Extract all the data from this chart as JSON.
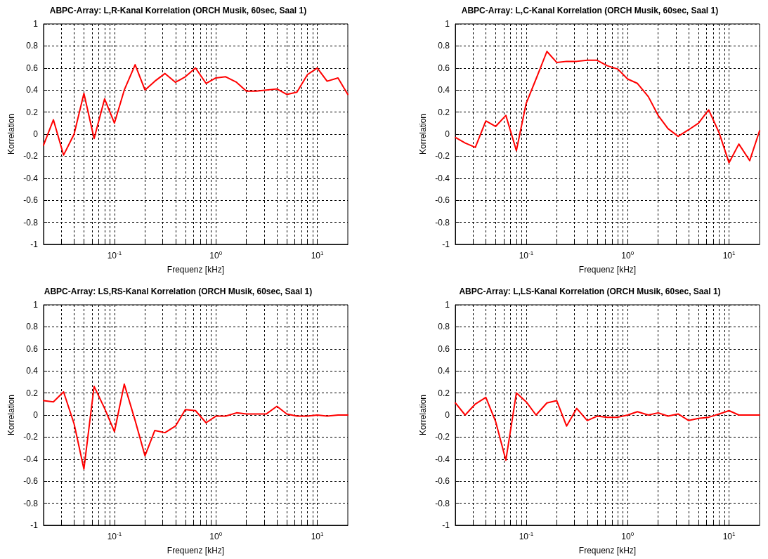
{
  "chart_data": [
    {
      "type": "line",
      "title": "ABPC-Array: L,R-Kanal Korrelation (ORCH Musik, 60sec, Saal 1)",
      "xlabel": "Frequenz [kHz]",
      "ylabel": "Korrelation",
      "log": "x",
      "grid": true,
      "marker": "none",
      "line_style": "solid",
      "xlim": [
        0.02,
        20
      ],
      "ylim": [
        -1,
        1
      ],
      "xticks": [
        {
          "value": 0.03,
          "label": null
        },
        {
          "value": 0.04,
          "label": null
        },
        {
          "value": 0.05,
          "label": null
        },
        {
          "value": 0.06,
          "label": null
        },
        {
          "value": 0.07,
          "label": null
        },
        {
          "value": 0.08,
          "label": null
        },
        {
          "value": 0.09,
          "label": null
        },
        {
          "value": 0.1,
          "label": "10$^{-1}$"
        },
        {
          "value": 0.2,
          "label": null
        },
        {
          "value": 0.3,
          "label": null
        },
        {
          "value": 0.4,
          "label": null
        },
        {
          "value": 0.5,
          "label": null
        },
        {
          "value": 0.6,
          "label": null
        },
        {
          "value": 0.7,
          "label": null
        },
        {
          "value": 0.8,
          "label": null
        },
        {
          "value": 0.9,
          "label": null
        },
        {
          "value": 1,
          "label": "10$^{0}$"
        },
        {
          "value": 2,
          "label": null
        },
        {
          "value": 3,
          "label": null
        },
        {
          "value": 4,
          "label": null
        },
        {
          "value": 5,
          "label": null
        },
        {
          "value": 6,
          "label": null
        },
        {
          "value": 7,
          "label": null
        },
        {
          "value": 8,
          "label": null
        },
        {
          "value": 9,
          "label": null
        },
        {
          "value": 10,
          "label": "10$^{1}$"
        }
      ],
      "yticks": [
        -1,
        -0.8,
        -0.6,
        -0.4,
        -0.2,
        0,
        0.2,
        0.4,
        0.6,
        0.8,
        1
      ],
      "x": [
        0.02,
        0.025,
        0.0315,
        0.04,
        0.05,
        0.063,
        0.08,
        0.1,
        0.125,
        0.16,
        0.2,
        0.25,
        0.315,
        0.4,
        0.5,
        0.63,
        0.8,
        1,
        1.25,
        1.6,
        2,
        2.5,
        3.15,
        4,
        5,
        6.3,
        8,
        10,
        12.5,
        16,
        20
      ],
      "series": [
        {
          "color": "#ff0000",
          "values": [
            -0.1,
            0.13,
            -0.19,
            0.0,
            0.37,
            -0.04,
            0.32,
            0.1,
            0.4,
            0.63,
            0.4,
            0.48,
            0.55,
            0.47,
            0.52,
            0.6,
            0.46,
            0.51,
            0.52,
            0.47,
            0.39,
            0.39,
            0.4,
            0.41,
            0.36,
            0.38,
            0.54,
            0.6,
            0.48,
            0.51,
            0.36
          ]
        }
      ]
    },
    {
      "type": "line",
      "title": "ABPC-Array: L,C-Kanal Korrelation (ORCH Musik, 60sec, Saal 1)",
      "xlabel": "Frequenz [kHz]",
      "ylabel": "Korrelation",
      "log": "x",
      "grid": true,
      "marker": "none",
      "line_style": "solid",
      "xlim": [
        0.02,
        20
      ],
      "ylim": [
        -1,
        1
      ],
      "xticks": [
        {
          "value": 0.03,
          "label": null
        },
        {
          "value": 0.04,
          "label": null
        },
        {
          "value": 0.05,
          "label": null
        },
        {
          "value": 0.06,
          "label": null
        },
        {
          "value": 0.07,
          "label": null
        },
        {
          "value": 0.08,
          "label": null
        },
        {
          "value": 0.09,
          "label": null
        },
        {
          "value": 0.1,
          "label": "10$^{-1}$"
        },
        {
          "value": 0.2,
          "label": null
        },
        {
          "value": 0.3,
          "label": null
        },
        {
          "value": 0.4,
          "label": null
        },
        {
          "value": 0.5,
          "label": null
        },
        {
          "value": 0.6,
          "label": null
        },
        {
          "value": 0.7,
          "label": null
        },
        {
          "value": 0.8,
          "label": null
        },
        {
          "value": 0.9,
          "label": null
        },
        {
          "value": 1,
          "label": "10$^{0}$"
        },
        {
          "value": 2,
          "label": null
        },
        {
          "value": 3,
          "label": null
        },
        {
          "value": 4,
          "label": null
        },
        {
          "value": 5,
          "label": null
        },
        {
          "value": 6,
          "label": null
        },
        {
          "value": 7,
          "label": null
        },
        {
          "value": 8,
          "label": null
        },
        {
          "value": 9,
          "label": null
        },
        {
          "value": 10,
          "label": "10$^{1}$"
        }
      ],
      "yticks": [
        -1,
        -0.8,
        -0.6,
        -0.4,
        -0.2,
        0,
        0.2,
        0.4,
        0.6,
        0.8,
        1
      ],
      "x": [
        0.02,
        0.025,
        0.0315,
        0.04,
        0.05,
        0.063,
        0.08,
        0.1,
        0.125,
        0.16,
        0.2,
        0.25,
        0.315,
        0.4,
        0.5,
        0.63,
        0.8,
        1,
        1.25,
        1.6,
        2,
        2.5,
        3.15,
        4,
        5,
        6.3,
        8,
        10,
        12.5,
        16,
        20
      ],
      "series": [
        {
          "color": "#ff0000",
          "values": [
            -0.03,
            -0.08,
            -0.12,
            0.12,
            0.07,
            0.17,
            -0.15,
            0.28,
            0.5,
            0.75,
            0.65,
            0.66,
            0.66,
            0.67,
            0.67,
            0.62,
            0.59,
            0.5,
            0.46,
            0.34,
            0.17,
            0.05,
            -0.02,
            0.04,
            0.1,
            0.22,
            0.01,
            -0.26,
            -0.09,
            -0.24,
            0.03
          ]
        }
      ]
    },
    {
      "type": "line",
      "title": "ABPC-Array: LS,RS-Kanal Korrelation (ORCH Musik, 60sec, Saal 1)",
      "xlabel": "Frequenz [kHz]",
      "ylabel": "Korrelation",
      "log": "x",
      "grid": true,
      "marker": "none",
      "line_style": "solid",
      "xlim": [
        0.02,
        20
      ],
      "ylim": [
        -1,
        1
      ],
      "xticks": [
        {
          "value": 0.03,
          "label": null
        },
        {
          "value": 0.04,
          "label": null
        },
        {
          "value": 0.05,
          "label": null
        },
        {
          "value": 0.06,
          "label": null
        },
        {
          "value": 0.07,
          "label": null
        },
        {
          "value": 0.08,
          "label": null
        },
        {
          "value": 0.09,
          "label": null
        },
        {
          "value": 0.1,
          "label": "10$^{-1}$"
        },
        {
          "value": 0.2,
          "label": null
        },
        {
          "value": 0.3,
          "label": null
        },
        {
          "value": 0.4,
          "label": null
        },
        {
          "value": 0.5,
          "label": null
        },
        {
          "value": 0.6,
          "label": null
        },
        {
          "value": 0.7,
          "label": null
        },
        {
          "value": 0.8,
          "label": null
        },
        {
          "value": 0.9,
          "label": null
        },
        {
          "value": 1,
          "label": "10$^{0}$"
        },
        {
          "value": 2,
          "label": null
        },
        {
          "value": 3,
          "label": null
        },
        {
          "value": 4,
          "label": null
        },
        {
          "value": 5,
          "label": null
        },
        {
          "value": 6,
          "label": null
        },
        {
          "value": 7,
          "label": null
        },
        {
          "value": 8,
          "label": null
        },
        {
          "value": 9,
          "label": null
        },
        {
          "value": 10,
          "label": "10$^{1}$"
        }
      ],
      "yticks": [
        -1,
        -0.8,
        -0.6,
        -0.4,
        -0.2,
        0,
        0.2,
        0.4,
        0.6,
        0.8,
        1
      ],
      "x": [
        0.02,
        0.025,
        0.0315,
        0.04,
        0.05,
        0.063,
        0.08,
        0.1,
        0.125,
        0.16,
        0.2,
        0.25,
        0.315,
        0.4,
        0.5,
        0.63,
        0.8,
        1,
        1.25,
        1.6,
        2,
        2.5,
        3.15,
        4,
        5,
        6.3,
        8,
        10,
        12.5,
        16,
        20
      ],
      "series": [
        {
          "color": "#ff0000",
          "values": [
            0.13,
            0.12,
            0.21,
            -0.08,
            -0.49,
            0.26,
            0.06,
            -0.15,
            0.28,
            -0.05,
            -0.37,
            -0.14,
            -0.16,
            -0.1,
            0.05,
            0.04,
            -0.07,
            -0.01,
            -0.01,
            0.02,
            0.01,
            0.01,
            0.01,
            0.08,
            0.01,
            -0.01,
            -0.01,
            0.0,
            -0.01,
            0.0,
            0.0
          ]
        }
      ]
    },
    {
      "type": "line",
      "title": "ABPC-Array: L,LS-Kanal Korrelation (ORCH Musik, 60sec, Saal 1)",
      "xlabel": "Frequenz [kHz]",
      "ylabel": "Korrelation",
      "log": "x",
      "grid": true,
      "marker": "none",
      "line_style": "solid",
      "xlim": [
        0.02,
        20
      ],
      "ylim": [
        -1,
        1
      ],
      "xticks": [
        {
          "value": 0.03,
          "label": null
        },
        {
          "value": 0.04,
          "label": null
        },
        {
          "value": 0.05,
          "label": null
        },
        {
          "value": 0.06,
          "label": null
        },
        {
          "value": 0.07,
          "label": null
        },
        {
          "value": 0.08,
          "label": null
        },
        {
          "value": 0.09,
          "label": null
        },
        {
          "value": 0.1,
          "label": "10$^{-1}$"
        },
        {
          "value": 0.2,
          "label": null
        },
        {
          "value": 0.3,
          "label": null
        },
        {
          "value": 0.4,
          "label": null
        },
        {
          "value": 0.5,
          "label": null
        },
        {
          "value": 0.6,
          "label": null
        },
        {
          "value": 0.7,
          "label": null
        },
        {
          "value": 0.8,
          "label": null
        },
        {
          "value": 0.9,
          "label": null
        },
        {
          "value": 1,
          "label": "10$^{0}$"
        },
        {
          "value": 2,
          "label": null
        },
        {
          "value": 3,
          "label": null
        },
        {
          "value": 4,
          "label": null
        },
        {
          "value": 5,
          "label": null
        },
        {
          "value": 6,
          "label": null
        },
        {
          "value": 7,
          "label": null
        },
        {
          "value": 8,
          "label": null
        },
        {
          "value": 9,
          "label": null
        },
        {
          "value": 10,
          "label": "10$^{1}$"
        }
      ],
      "yticks": [
        -1,
        -0.8,
        -0.6,
        -0.4,
        -0.2,
        0,
        0.2,
        0.4,
        0.6,
        0.8,
        1
      ],
      "x": [
        0.02,
        0.025,
        0.0315,
        0.04,
        0.05,
        0.063,
        0.08,
        0.1,
        0.125,
        0.16,
        0.2,
        0.25,
        0.315,
        0.4,
        0.5,
        0.63,
        0.8,
        1,
        1.25,
        1.6,
        2,
        2.5,
        3.15,
        4,
        5,
        6.3,
        8,
        10,
        12.5,
        16,
        20
      ],
      "series": [
        {
          "color": "#ff0000",
          "values": [
            0.11,
            0.0,
            0.1,
            0.16,
            -0.06,
            -0.41,
            0.2,
            0.12,
            0.0,
            0.11,
            0.13,
            -0.1,
            0.06,
            -0.05,
            -0.01,
            -0.02,
            -0.02,
            0.0,
            0.03,
            0.0,
            0.02,
            -0.01,
            0.01,
            -0.05,
            -0.03,
            -0.02,
            0.01,
            0.04,
            0.0,
            0.0,
            0.0
          ]
        }
      ]
    }
  ]
}
